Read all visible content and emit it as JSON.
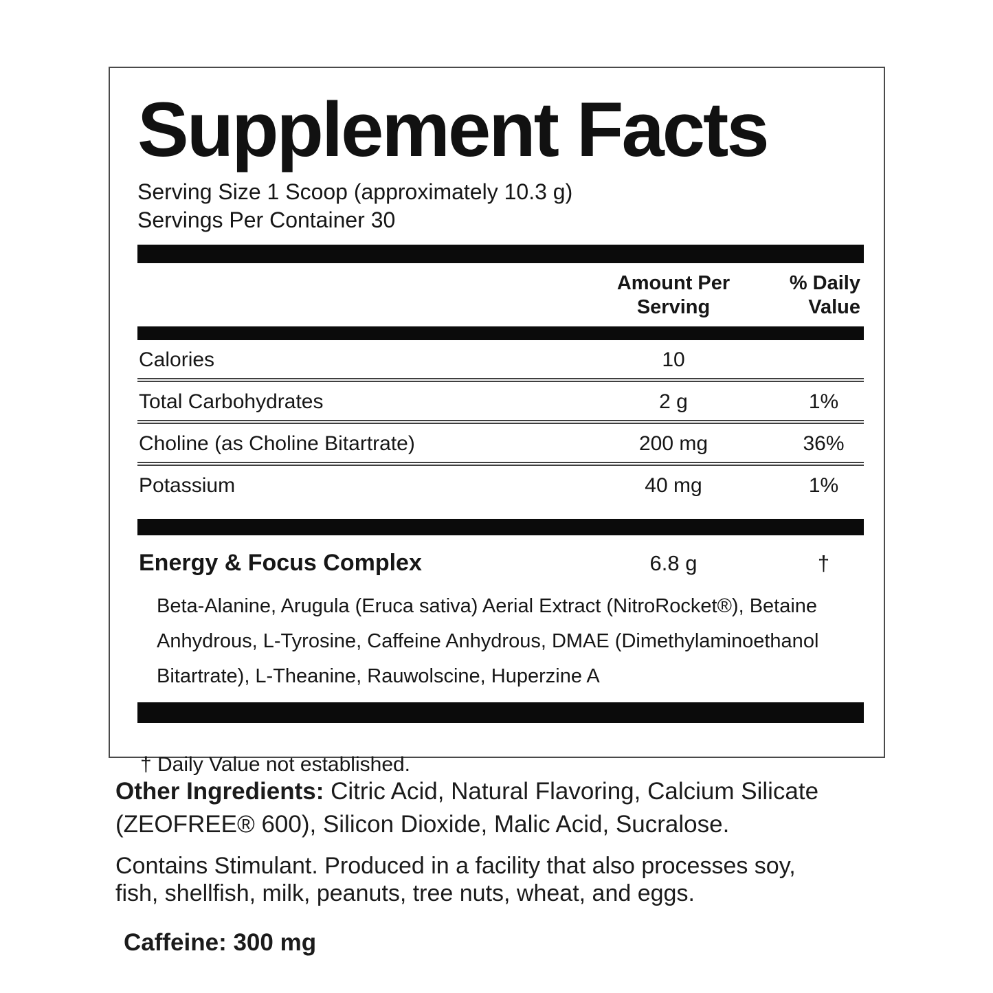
{
  "panel": {
    "title": "Supplement Facts",
    "serving_size": "Serving Size 1 Scoop (approximately 10.3 g)",
    "servings_per_container": "Servings Per Container 30",
    "columns": {
      "amount": "Amount Per Serving",
      "daily_value": "% Daily Value"
    },
    "rows": [
      {
        "name": "Calories",
        "amount": "10",
        "dv": ""
      },
      {
        "name": "Total Carbohydrates",
        "amount": "2 g",
        "dv": "1%"
      },
      {
        "name": "Choline (as Choline Bitartrate)",
        "amount": "200 mg",
        "dv": "36%"
      },
      {
        "name": "Potassium",
        "amount": "40 mg",
        "dv": "1%"
      }
    ],
    "complex": {
      "name": "Energy & Focus Complex",
      "amount": "6.8 g",
      "dv": "†"
    },
    "complex_ingredients": "Beta-Alanine, Arugula (Eruca sativa) Aerial Extract (NitroRocket®), Betaine Anhydrous, L-Tyrosine, Caffeine Anhydrous, DMAE (Dimethylaminoethanol Bitartrate), L-Theanine, Rauwolscine, Huperzine A",
    "footnote": "† Daily Value not established."
  },
  "other_ingredients": {
    "label": "Other Ingredients:",
    "text": "Citric Acid, Natural Flavoring, Calcium Silicate (ZEOFREE® 600), Silicon Dioxide, Malic Acid, Sucralose."
  },
  "allergen_notice": "Contains Stimulant. Produced in a facility that also processes soy, fish, shellfish, milk, peanuts, tree nuts, wheat, and eggs.",
  "caffeine_content": "Caffeine: 300 mg",
  "colors": {
    "text": "#161616",
    "divider_bar": "#0b0b0b",
    "separator_line": "#3f3f3f",
    "panel_border": "#4a4a4a",
    "background": "#ffffff"
  }
}
